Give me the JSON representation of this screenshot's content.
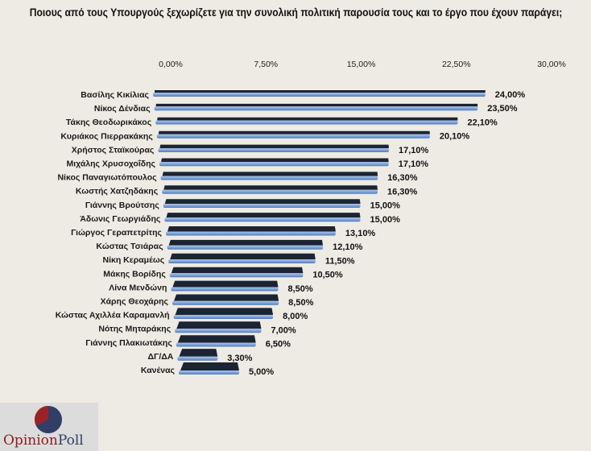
{
  "chart_data": {
    "type": "bar",
    "orientation": "horizontal",
    "style": "3d",
    "title": "Ποιους από τους Υπουργούς  ξεχωρίζετε για την συνολική πολιτική παρουσία τους και το έργο που έχουν παράγει;",
    "xlim": [
      0,
      30
    ],
    "xticks": [
      "0,00%",
      "7,50%",
      "15,00%",
      "22,50%",
      "30,00%"
    ],
    "tick_position": "top",
    "grid": false,
    "categories": [
      "Βασίλης Κικίλιας",
      "Νίκος Δένδιας",
      "Τάκης Θεοδωρικάκος",
      "Κυριάκος Πιερρακάκης",
      "Χρήστος Σταϊκούρας",
      "Μιχάλης Χρυσοχοΐδης",
      "Νίκος Παναγιωτόπουλος",
      "Κωστής Χατζηδάκης",
      "Γιάννης Βρούτσης",
      "Άδωνις Γεωργιάδης",
      "Γιώργος Γεραπετρίτης",
      "Κώστας Τσιάρας",
      "Νίκη Κεραμέως",
      "Μάκης Βορίδης",
      "Λίνα Μενδώνη",
      "Χάρης Θεοχάρης",
      "Κώστας Αχιλλέα Καραμανλή",
      "Νότης Μηταράκης",
      "Γιάννης Πλακιωτάκης",
      "ΔΓ/ΔΑ",
      "Κανένας"
    ],
    "values": [
      24.0,
      23.5,
      22.1,
      20.1,
      17.1,
      17.1,
      16.3,
      16.3,
      15.0,
      15.0,
      13.1,
      12.1,
      11.5,
      10.5,
      8.5,
      8.5,
      8.0,
      7.0,
      6.5,
      3.3,
      5.0
    ],
    "data_labels": [
      "24,00%",
      "23,50%",
      "22,10%",
      "20,10%",
      "17,10%",
      "17,10%",
      "16,30%",
      "16,30%",
      "15,00%",
      "15,00%",
      "13,10%",
      "12,10%",
      "11,50%",
      "10,50%",
      "8,50%",
      "8,50%",
      "8,00%",
      "7,00%",
      "6,50%",
      "3,30%",
      "5,00%"
    ],
    "colors": {
      "front": "#7fa6dc",
      "top": "#1c2433",
      "background": "#eeebe4"
    }
  },
  "logo": {
    "text_a": "Opinion",
    "text_b": "Poll",
    "colors": {
      "red": "#9c2225",
      "blue": "#2f3f66"
    }
  }
}
